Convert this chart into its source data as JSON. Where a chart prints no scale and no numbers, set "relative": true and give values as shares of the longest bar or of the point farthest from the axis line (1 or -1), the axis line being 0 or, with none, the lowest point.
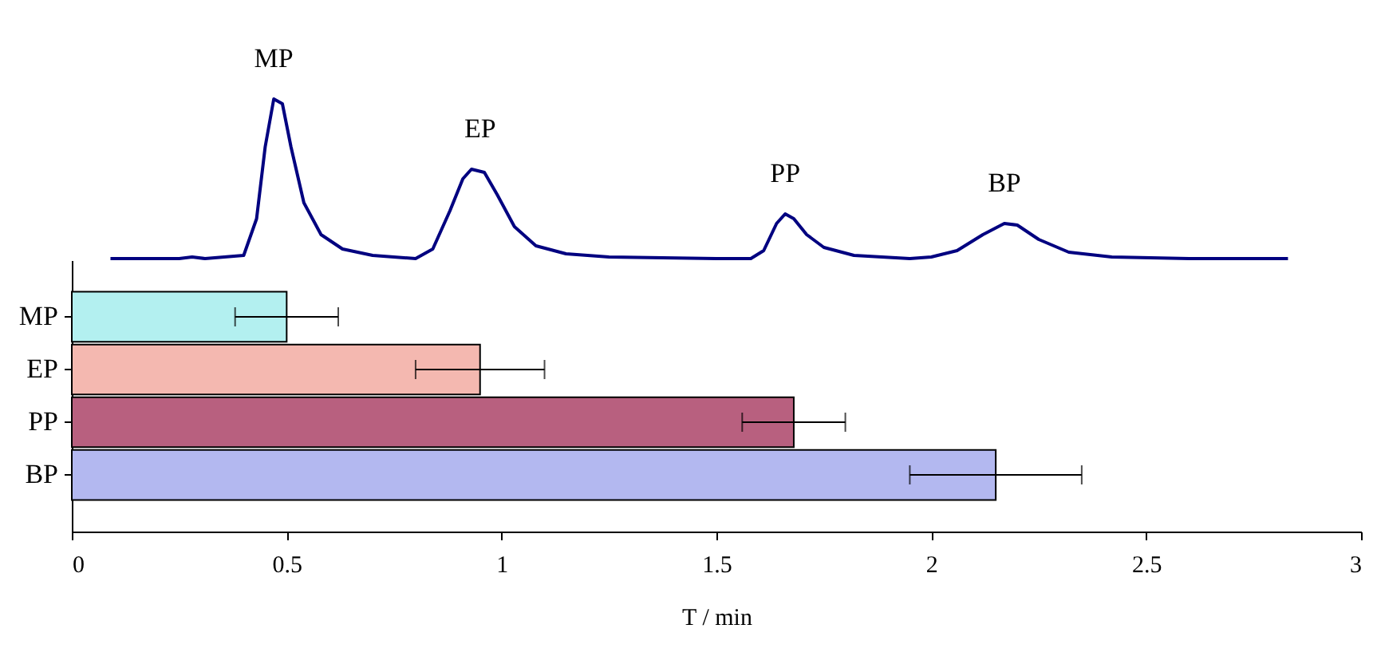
{
  "chart_data": [
    {
      "type": "line",
      "relative": true,
      "xlim": [
        0,
        3
      ],
      "tick_labels": false,
      "marker": "none",
      "line_style": "solid",
      "x": [
        0.09,
        0.25,
        0.28,
        0.31,
        0.4,
        0.43,
        0.45,
        0.47,
        0.49,
        0.51,
        0.54,
        0.58,
        0.63,
        0.7,
        0.8,
        0.84,
        0.88,
        0.91,
        0.93,
        0.96,
        0.99,
        1.03,
        1.08,
        1.15,
        1.25,
        1.5,
        1.58,
        1.61,
        1.64,
        1.66,
        1.68,
        1.71,
        1.75,
        1.82,
        1.95,
        2.0,
        2.06,
        2.12,
        2.17,
        2.2,
        2.25,
        2.32,
        2.42,
        2.6,
        2.83
      ],
      "series": [
        {
          "color": "#000080",
          "values": [
            0,
            0,
            0.01,
            0,
            0.02,
            0.25,
            0.7,
            1.0,
            0.97,
            0.7,
            0.35,
            0.15,
            0.06,
            0.02,
            0,
            0.06,
            0.3,
            0.5,
            0.56,
            0.54,
            0.4,
            0.2,
            0.08,
            0.03,
            0.01,
            0,
            0,
            0.05,
            0.22,
            0.28,
            0.25,
            0.15,
            0.07,
            0.02,
            0,
            0.01,
            0.05,
            0.15,
            0.22,
            0.21,
            0.12,
            0.04,
            0.01,
            0,
            0
          ]
        }
      ],
      "annotations": [
        {
          "text": "MP",
          "x": 0.47,
          "y": 1.0
        },
        {
          "text": "EP",
          "x": 0.95,
          "y": 0.56
        },
        {
          "text": "PP",
          "x": 1.66,
          "y": 0.28
        },
        {
          "text": "BP",
          "x": 2.17,
          "y": 0.22
        }
      ]
    },
    {
      "type": "bar",
      "orientation": "horizontal",
      "categories": [
        "MP",
        "EP",
        "PP",
        "BP"
      ],
      "values": [
        0.5,
        0.95,
        1.68,
        2.15
      ],
      "colors": [
        "#b3f0f0",
        "#f4b8b0",
        "#b8607f",
        "#b3b8f0"
      ],
      "errors": [
        [
          0.38,
          0.62
        ],
        [
          0.8,
          1.1
        ],
        [
          1.56,
          1.8
        ],
        [
          1.95,
          2.35
        ]
      ],
      "xlim": [
        0,
        3
      ],
      "xticks": [
        {
          "value": 0,
          "label": "0"
        },
        0.5,
        {
          "value": 1,
          "label": "1"
        },
        1.5,
        {
          "value": 2,
          "label": "2"
        },
        2.5,
        {
          "value": 3,
          "label": "3"
        }
      ],
      "xlabel": "T / min"
    }
  ]
}
